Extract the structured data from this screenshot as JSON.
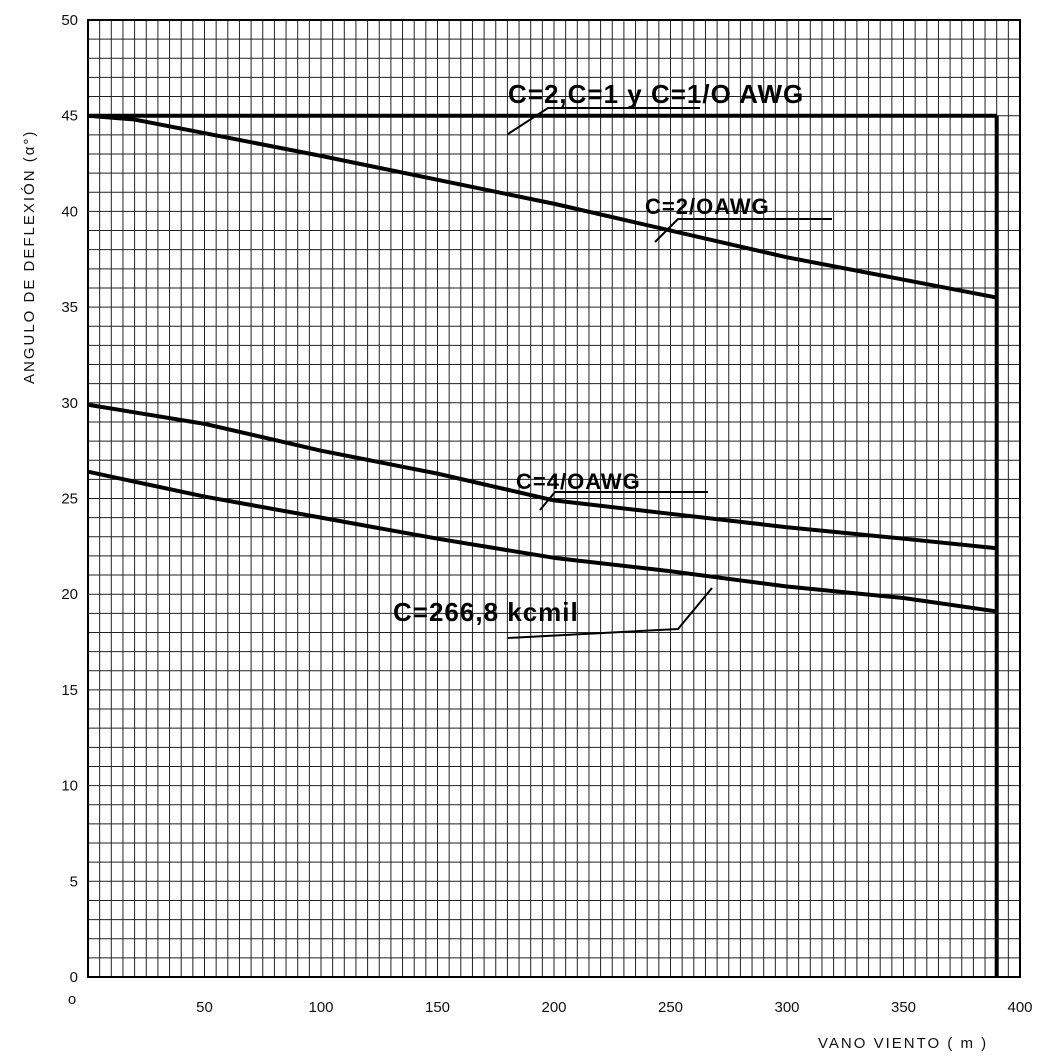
{
  "chart_data": {
    "type": "line",
    "xlabel": "VANO VIENTO  (  m  )",
    "ylabel": "ANGULO  DE  DEFLEXIÓN  (α°)",
    "xlim": [
      0,
      400
    ],
    "ylim": [
      0,
      50
    ],
    "x_ticks": [
      "o",
      "50",
      "100",
      "150",
      "200",
      "250",
      "300",
      "350",
      "400"
    ],
    "y_ticks": [
      "0",
      "5",
      "10",
      "15",
      "20",
      "25",
      "30",
      "35",
      "40",
      "45",
      "50"
    ],
    "grid": true,
    "x_end": 390,
    "series": [
      {
        "name": "C=2,C=1  y  C=1/O  AWG",
        "x": [
          0,
          390
        ],
        "y": [
          45,
          45
        ]
      },
      {
        "name": "C=2/OAWG",
        "x": [
          0,
          20,
          100,
          200,
          300,
          390
        ],
        "y": [
          45,
          44.8,
          42.9,
          40.4,
          37.6,
          35.5
        ]
      },
      {
        "name": "C=4/OAWG",
        "x": [
          0,
          50,
          100,
          150,
          200,
          250,
          300,
          350,
          390
        ],
        "y": [
          29.9,
          28.9,
          27.5,
          26.3,
          24.9,
          24.2,
          23.5,
          22.9,
          22.4
        ]
      },
      {
        "name": "C=266,8  kcmil",
        "x": [
          0,
          50,
          100,
          150,
          200,
          250,
          300,
          350,
          390
        ],
        "y": [
          26.4,
          25.1,
          24.0,
          22.9,
          21.9,
          21.2,
          20.4,
          19.8,
          19.1
        ]
      }
    ]
  }
}
